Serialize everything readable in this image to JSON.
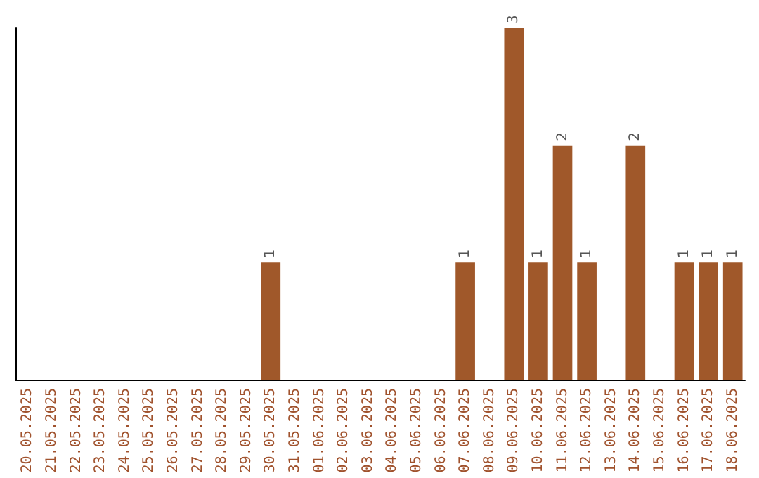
{
  "chart_data": {
    "type": "bar",
    "categories": [
      "20.05.2025",
      "21.05.2025",
      "22.05.2025",
      "23.05.2025",
      "24.05.2025",
      "25.05.2025",
      "26.05.2025",
      "27.05.2025",
      "28.05.2025",
      "29.05.2025",
      "30.05.2025",
      "31.05.2025",
      "01.06.2025",
      "02.06.2025",
      "03.06.2025",
      "04.06.2025",
      "05.06.2025",
      "06.06.2025",
      "07.06.2025",
      "08.06.2025",
      "09.06.2025",
      "10.06.2025",
      "11.06.2025",
      "12.06.2025",
      "13.06.2025",
      "14.06.2025",
      "15.06.2025",
      "16.06.2025",
      "17.06.2025",
      "18.06.2025"
    ],
    "values": [
      0,
      0,
      0,
      0,
      0,
      0,
      0,
      0,
      0,
      0,
      1,
      0,
      0,
      0,
      0,
      0,
      0,
      0,
      1,
      0,
      3,
      1,
      2,
      1,
      0,
      2,
      0,
      1,
      1,
      1
    ],
    "color": "#a0582a",
    "value_labels": [
      null,
      null,
      null,
      null,
      null,
      null,
      null,
      null,
      null,
      null,
      "1",
      null,
      null,
      null,
      null,
      null,
      null,
      null,
      "1",
      null,
      "3",
      "1",
      "2",
      "1",
      null,
      "2",
      null,
      "1",
      "1",
      "1"
    ],
    "grid": false,
    "tick_labels": "x"
  }
}
